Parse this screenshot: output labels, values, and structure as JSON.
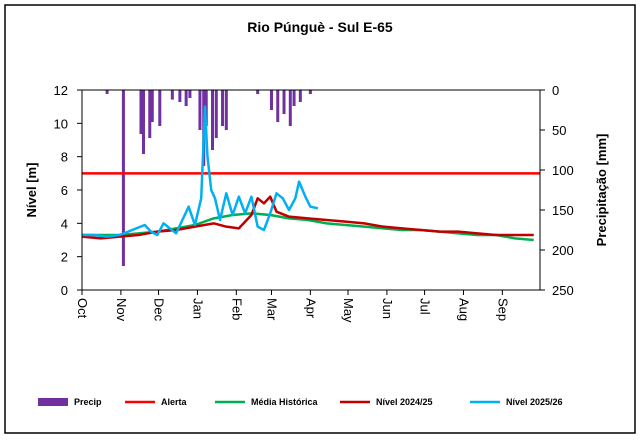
{
  "chart_data": {
    "type": "bar+line",
    "title": "Rio Púnguè - Sul E-65",
    "y_label": "Nível [m]",
    "y2_label": "Precipitação [mm]",
    "xlim": [
      0,
      365
    ],
    "xticks": [
      {
        "value": 0,
        "label": "Oct"
      },
      {
        "value": 31,
        "label": "Nov"
      },
      {
        "value": 61,
        "label": "Dec"
      },
      {
        "value": 92,
        "label": "Jan"
      },
      {
        "value": 123,
        "label": "Feb"
      },
      {
        "value": 151,
        "label": "Mar"
      },
      {
        "value": 182,
        "label": "Apr"
      },
      {
        "value": 212,
        "label": "May"
      },
      {
        "value": 243,
        "label": "Jun"
      },
      {
        "value": 273,
        "label": "Jul"
      },
      {
        "value": 304,
        "label": "Aug"
      },
      {
        "value": 335,
        "label": "Sep"
      }
    ],
    "ylim": [
      0,
      12
    ],
    "yticks": [
      0,
      2,
      4,
      6,
      8,
      10,
      12
    ],
    "y2lim": [
      0,
      250
    ],
    "y2ticks": [
      0,
      50,
      100,
      150,
      200,
      250
    ],
    "y2_inverted": true,
    "grid": false,
    "series": [
      {
        "name": "Precip",
        "color": "#7030a0",
        "type": "bar",
        "axis": "y2",
        "x": [
          20,
          33,
          47,
          49,
          54,
          56,
          62,
          72,
          78,
          83,
          86,
          94,
          97,
          99,
          104,
          107,
          112,
          115,
          140,
          151,
          156,
          161,
          166,
          169,
          174,
          182
        ],
        "values": [
          5,
          220,
          55,
          80,
          60,
          40,
          45,
          12,
          15,
          20,
          10,
          50,
          95,
          45,
          75,
          60,
          45,
          50,
          5,
          25,
          40,
          30,
          45,
          20,
          15,
          5
        ]
      },
      {
        "name": "Alerta",
        "color": "#ff0000",
        "type": "line",
        "x": [
          0,
          365
        ],
        "values": [
          7,
          7
        ]
      },
      {
        "name": "Média Histórica",
        "color": "#00b050",
        "type": "line",
        "x": [
          0,
          15,
          30,
          45,
          60,
          75,
          90,
          105,
          120,
          135,
          150,
          165,
          180,
          195,
          210,
          225,
          240,
          255,
          270,
          285,
          300,
          315,
          330,
          345,
          360
        ],
        "values": [
          3.3,
          3.3,
          3.3,
          3.4,
          3.5,
          3.7,
          3.9,
          4.3,
          4.5,
          4.6,
          4.5,
          4.3,
          4.2,
          4.0,
          3.9,
          3.8,
          3.7,
          3.6,
          3.6,
          3.5,
          3.4,
          3.3,
          3.3,
          3.1,
          3.0
        ]
      },
      {
        "name": "Nível 2024/25",
        "color": "#c00000",
        "type": "line",
        "x": [
          0,
          15,
          30,
          45,
          60,
          75,
          90,
          105,
          115,
          125,
          135,
          140,
          145,
          150,
          155,
          165,
          180,
          195,
          210,
          225,
          240,
          255,
          270,
          285,
          300,
          315,
          330,
          345,
          360
        ],
        "values": [
          3.2,
          3.1,
          3.2,
          3.3,
          3.5,
          3.6,
          3.8,
          4.0,
          3.8,
          3.7,
          4.5,
          5.5,
          5.2,
          5.6,
          4.7,
          4.4,
          4.3,
          4.2,
          4.1,
          4.0,
          3.8,
          3.7,
          3.6,
          3.5,
          3.5,
          3.4,
          3.3,
          3.3,
          3.3
        ]
      },
      {
        "name": "Nível 2025/26",
        "color": "#00b0f0",
        "type": "line",
        "x": [
          0,
          10,
          20,
          30,
          40,
          50,
          55,
          60,
          65,
          70,
          75,
          80,
          85,
          90,
          95,
          98,
          100,
          103,
          106,
          110,
          115,
          120,
          125,
          130,
          135,
          140,
          145,
          150,
          155,
          160,
          165,
          170,
          173,
          178,
          182,
          188
        ],
        "values": [
          3.3,
          3.3,
          3.2,
          3.3,
          3.6,
          3.9,
          3.5,
          3.3,
          4.0,
          3.7,
          3.4,
          4.2,
          5.0,
          3.9,
          5.5,
          11.0,
          8.0,
          6.0,
          5.5,
          4.2,
          5.8,
          4.5,
          5.6,
          4.6,
          5.6,
          3.8,
          3.6,
          4.6,
          5.8,
          5.5,
          4.8,
          5.5,
          6.5,
          5.6,
          5.0,
          4.9
        ]
      }
    ]
  }
}
